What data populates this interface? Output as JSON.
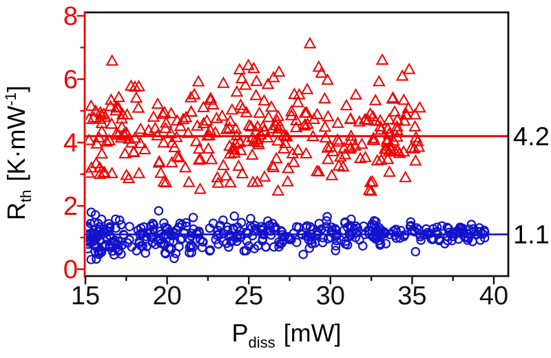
{
  "chart_data": {
    "type": "scatter",
    "title": "",
    "xlabel": "P_diss [mW]",
    "ylabel": "R_th [K·mW^-1]",
    "xlim": [
      15,
      41.2
    ],
    "ylim": [
      0,
      8.3
    ],
    "grid": false,
    "legend": "none",
    "seed": 20,
    "axes": {
      "x": {
        "major_ticks": [
          15,
          20,
          25,
          30,
          35,
          40
        ],
        "minor_ticks": [
          17.5,
          22.5,
          27.5,
          32.5,
          37.5
        ],
        "tick_label_color": "#111111",
        "axis_color": "#111111",
        "title_parts": {
          "main": "P",
          "sub": "diss",
          "rest": "[mW]"
        }
      },
      "y": {
        "major_ticks": [
          0,
          2,
          4,
          6,
          8
        ],
        "minor_ticks": [
          1,
          3,
          5,
          7
        ],
        "tick_label_color": "#ee0000",
        "axis_color": "#ee0000",
        "title_parts": {
          "main": "R",
          "sub": "th",
          "mid": "[K·mW",
          "sup": "-1",
          "end": "]"
        }
      }
    },
    "series": [
      {
        "name": "rth-upper-triangles",
        "marker": "triangle-open",
        "color": "#ee0000",
        "n": 310,
        "x_min": 15.12,
        "x_max": 35.57,
        "x_bias": 1.0,
        "y_mean_start": 4.3,
        "y_mean_end": 4.3,
        "y_sd_start": 0.92,
        "y_sd_end": 0.92,
        "y_clip": [
          2.33,
          7.22
        ],
        "ref_line": {
          "value": 4.2,
          "label": "4.2",
          "color": "#ee0000"
        }
      },
      {
        "name": "rth-lower-circles",
        "marker": "circle-open",
        "color": "#1212cd",
        "n": 425,
        "x_min": 15.12,
        "x_max": 39.82,
        "x_bias": 1.18,
        "y_mean_start": 1.02,
        "y_mean_end": 1.16,
        "y_sd_start": 0.34,
        "y_sd_end": 0.13,
        "y_clip": [
          0.25,
          2.0
        ],
        "ref_line": {
          "value": 1.1,
          "label": "1.1",
          "color": "#1212cd"
        }
      }
    ]
  }
}
